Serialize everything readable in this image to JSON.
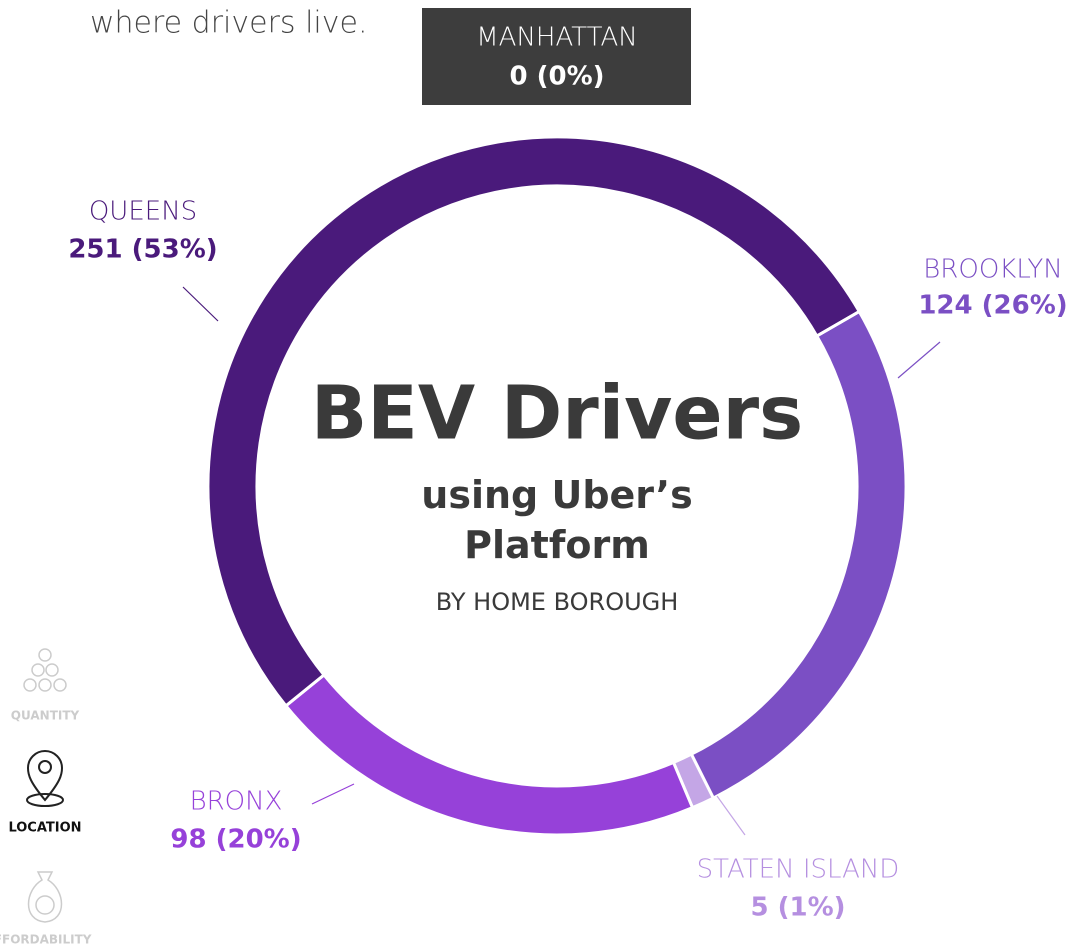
{
  "intro": "where drivers live.",
  "nav": [
    "QUANTITY",
    "LOCATION",
    "AFFORDABILITY"
  ],
  "chart_data": {
    "type": "donut",
    "title": "BEV Drivers",
    "subtitle": "using Uber’s Platform",
    "caption": "BY HOME BOROUGH",
    "categories": [
      "BROOKLYN",
      "STATEN ISLAND",
      "BRONX",
      "QUEENS",
      "MANHATTAN"
    ],
    "values": [
      124,
      5,
      98,
      251,
      0
    ],
    "value_labels": [
      "124 (26%)",
      "5 (1%)",
      "98 (20%)",
      "251 (53%)",
      "0 (0%)"
    ],
    "colors": [
      "#7b4fc4",
      "#c4a6e6",
      "#9641d9",
      "#4a1a7b",
      "#3d3d3d"
    ]
  }
}
